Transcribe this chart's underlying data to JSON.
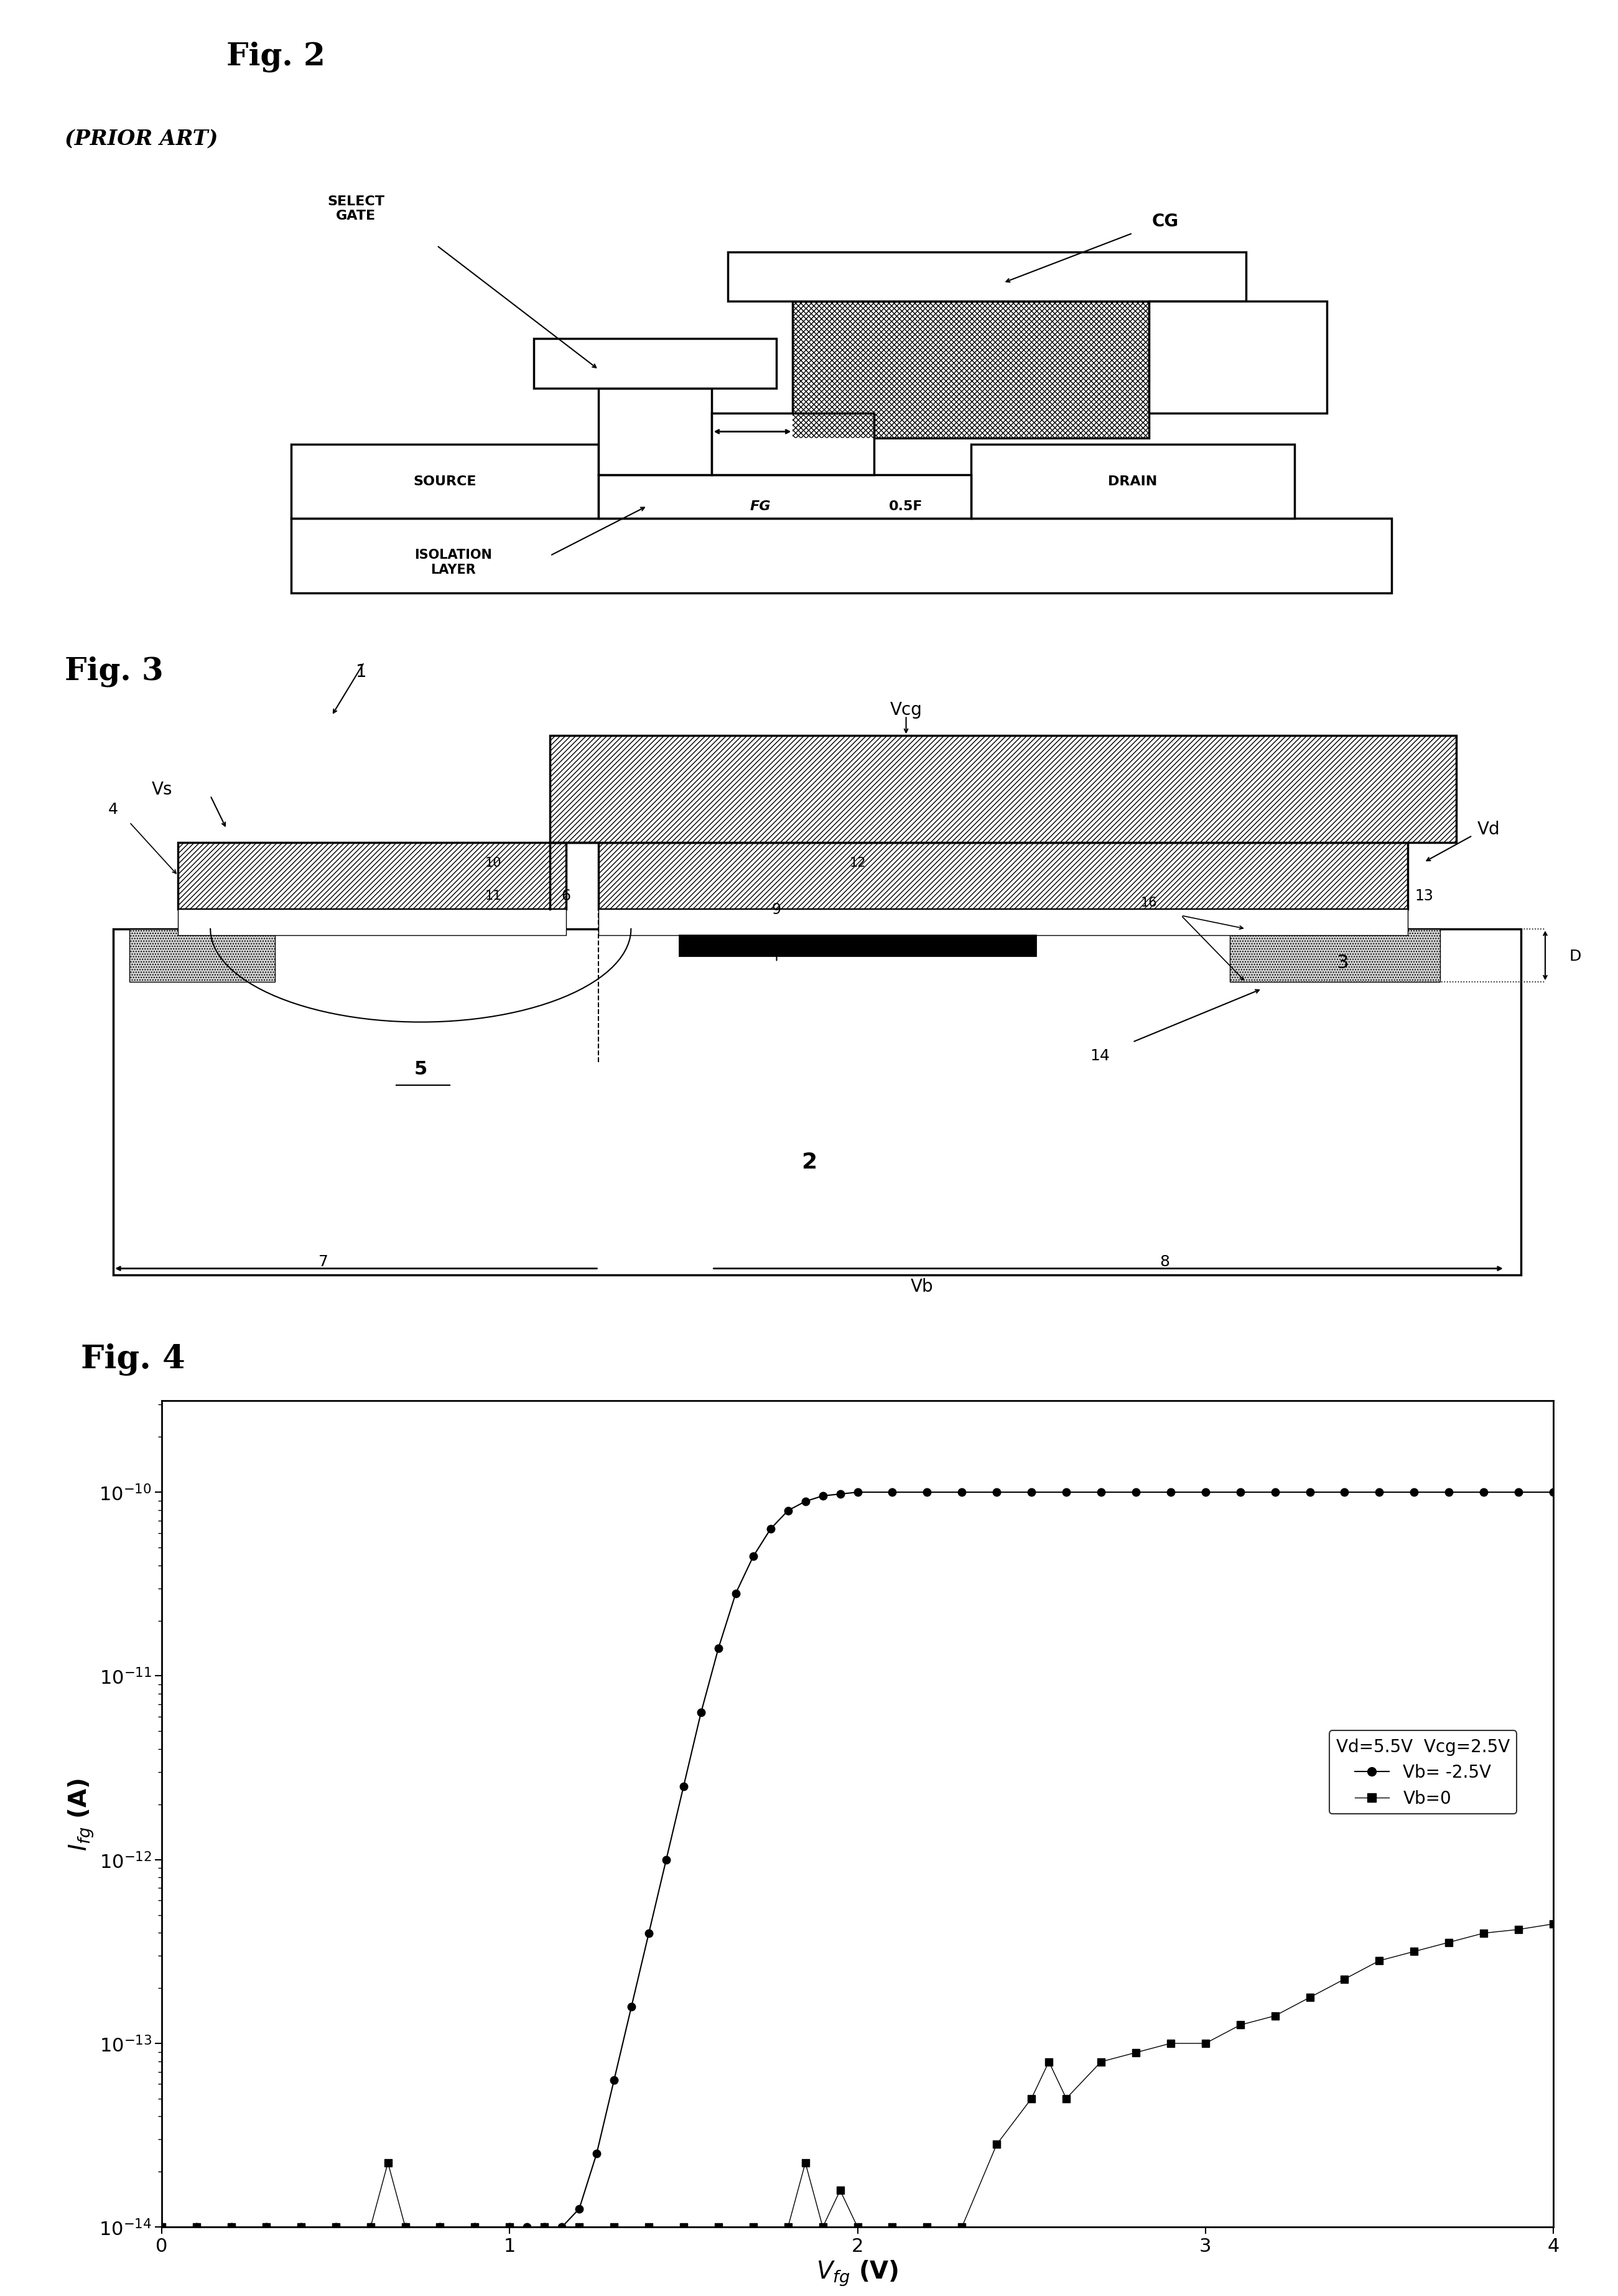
{
  "background_color": "#ffffff",
  "fig2_label": "Fig. 2",
  "fig2_sublabel": "(PRIOR ART)",
  "fig3_label": "Fig. 3",
  "fig4_label": "Fig. 4",
  "fig4_xlabel": "$V_{fg}$ (V)",
  "fig4_ylabel": "$I_{fg}$ (A)",
  "fig4_legend_title": "Vd=5.5V  Vcg=2.5V",
  "fig4_legend1": "Vb= -2.5V",
  "fig4_legend2": "Vb=0",
  "fig4_xlim": [
    0,
    4
  ],
  "fig4_ylim_log": [
    -14,
    -9.5
  ],
  "circle_data_x": [
    0.0,
    0.1,
    0.2,
    0.3,
    0.4,
    0.5,
    0.6,
    0.7,
    0.8,
    0.9,
    1.0,
    1.05,
    1.1,
    1.15,
    1.2,
    1.25,
    1.3,
    1.35,
    1.4,
    1.45,
    1.5,
    1.55,
    1.6,
    1.65,
    1.7,
    1.75,
    1.8,
    1.85,
    1.9,
    1.95,
    2.0,
    2.1,
    2.2,
    2.3,
    2.4,
    2.5,
    2.6,
    2.7,
    2.8,
    2.9,
    3.0,
    3.1,
    3.2,
    3.3,
    3.4,
    3.5,
    3.6,
    3.7,
    3.8,
    3.9,
    4.0
  ],
  "circle_data_y": [
    -14.0,
    -14.0,
    -14.0,
    -14.0,
    -14.0,
    -14.0,
    -14.0,
    -14.0,
    -14.0,
    -14.0,
    -14.0,
    -14.0,
    -14.0,
    -14.0,
    -13.9,
    -13.6,
    -13.2,
    -12.8,
    -12.4,
    -12.0,
    -11.6,
    -11.2,
    -10.85,
    -10.55,
    -10.35,
    -10.2,
    -10.1,
    -10.05,
    -10.02,
    -10.01,
    -10.0,
    -10.0,
    -10.0,
    -10.0,
    -10.0,
    -10.0,
    -10.0,
    -10.0,
    -10.0,
    -10.0,
    -10.0,
    -10.0,
    -10.0,
    -10.0,
    -10.0,
    -10.0,
    -10.0,
    -10.0,
    -10.0,
    -10.0,
    -10.0
  ],
  "square_data_x": [
    0.0,
    0.1,
    0.2,
    0.3,
    0.4,
    0.5,
    0.6,
    0.65,
    0.7,
    0.8,
    0.9,
    1.0,
    1.1,
    1.2,
    1.3,
    1.4,
    1.5,
    1.6,
    1.7,
    1.8,
    1.85,
    1.9,
    1.95,
    2.0,
    2.1,
    2.2,
    2.3,
    2.4,
    2.5,
    2.55,
    2.6,
    2.7,
    2.8,
    2.9,
    3.0,
    3.1,
    3.2,
    3.3,
    3.4,
    3.5,
    3.6,
    3.7,
    3.8,
    3.9,
    4.0
  ],
  "square_data_y": [
    -14.0,
    -14.0,
    -14.0,
    -14.0,
    -14.0,
    -14.0,
    -14.0,
    -13.65,
    -14.0,
    -14.0,
    -14.0,
    -14.0,
    -14.0,
    -14.0,
    -14.0,
    -14.0,
    -14.0,
    -14.0,
    -14.0,
    -14.0,
    -13.65,
    -14.0,
    -13.8,
    -14.0,
    -14.0,
    -14.0,
    -14.0,
    -13.55,
    -13.3,
    -13.1,
    -13.3,
    -13.1,
    -13.05,
    -13.0,
    -13.0,
    -12.9,
    -12.85,
    -12.75,
    -12.65,
    -12.55,
    -12.5,
    -12.45,
    -12.4,
    -12.38,
    -12.35
  ]
}
